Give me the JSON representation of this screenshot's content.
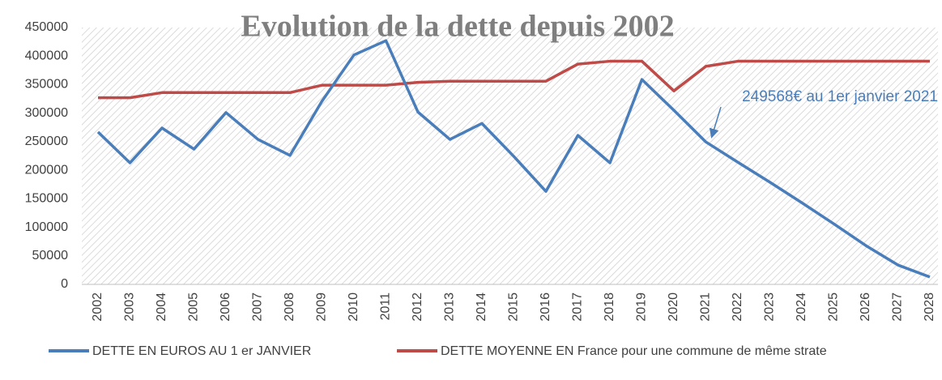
{
  "chart_data": {
    "type": "line",
    "title": "Evolution de la dette  depuis 2002",
    "annotation": "249568€ au 1er janvier 2021",
    "categories": [
      "2002",
      "2003",
      "2004",
      "2005",
      "2006",
      "2007",
      "2008",
      "2009",
      "2010",
      "2011",
      "2012",
      "2013",
      "2014",
      "2015",
      "2016",
      "2017",
      "2018",
      "2019",
      "2020",
      "2021",
      "2022",
      "2023",
      "2024",
      "2025",
      "2026",
      "2027",
      "2028"
    ],
    "series": [
      {
        "name": "DETTE EN EUROS AU 1 er  JANVIER",
        "color": "#4a7ebb",
        "values": [
          267000,
          213000,
          274000,
          237000,
          301000,
          254000,
          226000,
          321000,
          402000,
          427000,
          302000,
          254000,
          282000,
          224000,
          163000,
          261000,
          213000,
          359000,
          305000,
          249568,
          214000,
          179000,
          143000,
          106000,
          68000,
          34000,
          13000
        ]
      },
      {
        "name": "DETTE MOYENNE  EN France pour une commune de même strate",
        "color": "#be4b48",
        "values": [
          327000,
          327000,
          336000,
          336000,
          336000,
          336000,
          336000,
          349000,
          349000,
          349000,
          354000,
          356000,
          356000,
          356000,
          356000,
          386000,
          391000,
          391000,
          339000,
          382000,
          391000,
          391000,
          391000,
          391000,
          391000,
          391000,
          391000
        ]
      }
    ],
    "ylim": [
      0,
      450000
    ],
    "yticks": [
      0,
      50000,
      100000,
      150000,
      200000,
      250000,
      300000,
      350000,
      400000,
      450000
    ],
    "grid": false
  }
}
